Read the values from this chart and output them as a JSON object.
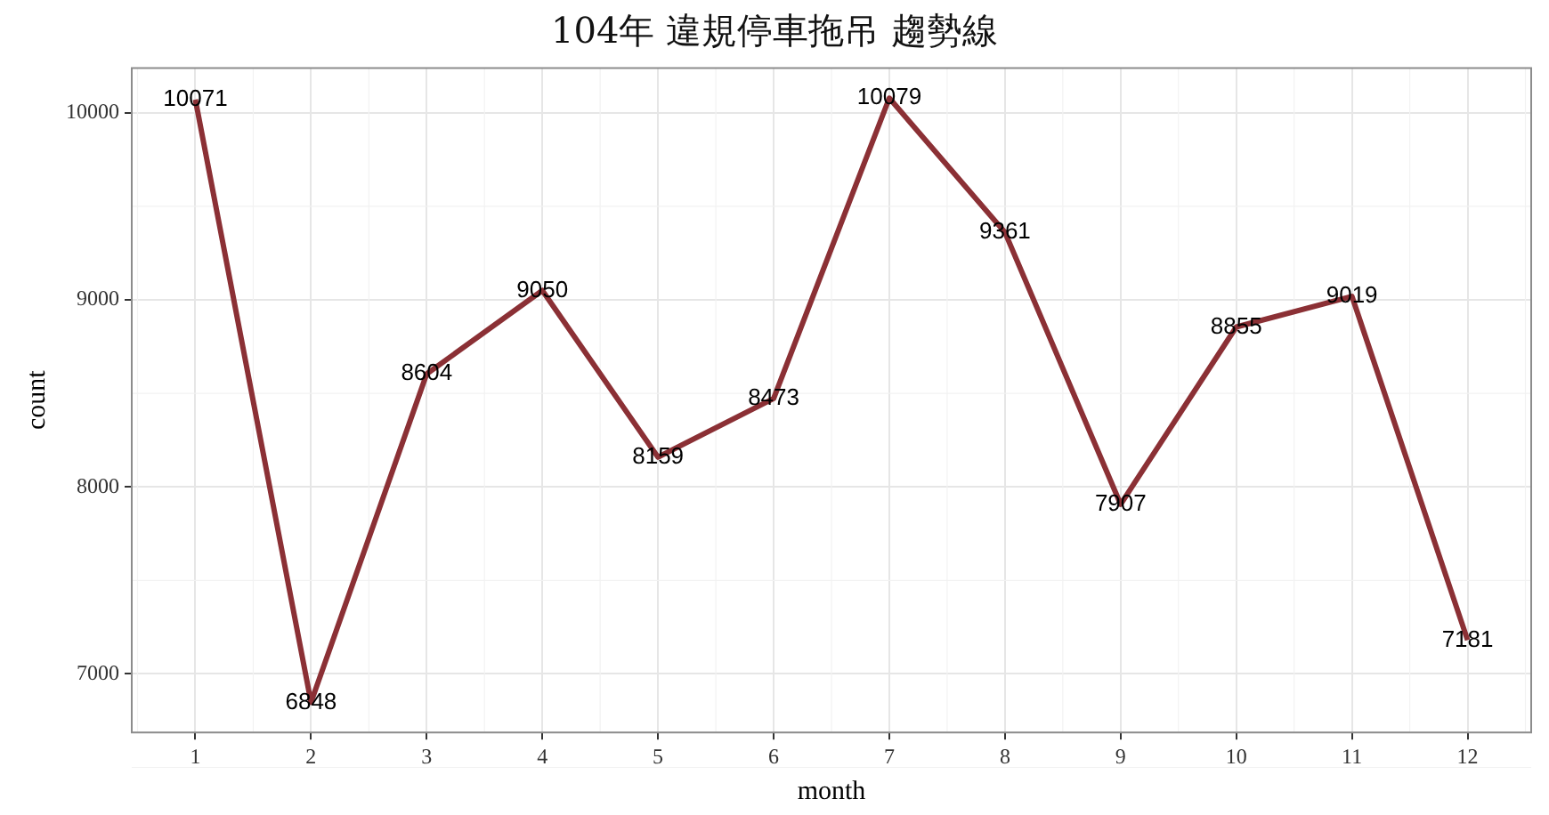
{
  "chart_data": {
    "type": "line",
    "title": "104年 違規停車拖吊 趨勢線",
    "xlabel": "month",
    "ylabel": "count",
    "x": [
      1,
      2,
      3,
      4,
      5,
      6,
      7,
      8,
      9,
      10,
      11,
      12
    ],
    "series": [
      {
        "color": "#8b3035",
        "values": [
          10071,
          6848,
          8604,
          9050,
          8159,
          8473,
          10079,
          9361,
          7907,
          8855,
          9019,
          7181
        ]
      }
    ],
    "xlim": [
      0.45,
      12.55
    ],
    "xticks": [
      1,
      2,
      3,
      4,
      5,
      6,
      7,
      8,
      9,
      10,
      11,
      12
    ],
    "ylim": [
      6687,
      10240
    ],
    "yticks": [
      7000,
      8000,
      9000,
      10000
    ],
    "grid": true,
    "legend": false,
    "marker": "none",
    "line_style": "solid",
    "data_labels": true
  }
}
